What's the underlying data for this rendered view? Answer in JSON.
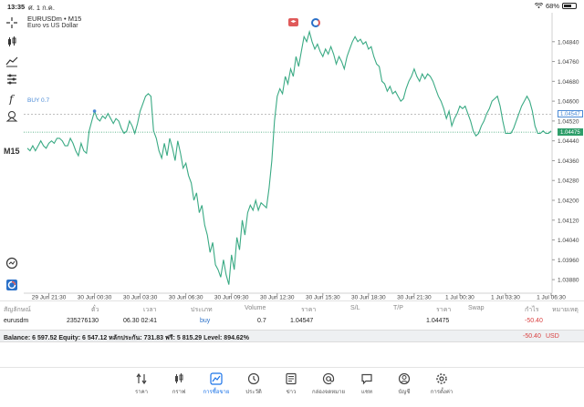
{
  "status_bar": {
    "time": "13:35",
    "date": "ศ. 1 ก.ค.",
    "battery": "68%",
    "battery_level": 0.68
  },
  "toolbar": {
    "timeframe": "M15"
  },
  "chart": {
    "symbol": "EURUSDm",
    "timeframe": "M15",
    "description": "Euro vs US Dollar",
    "buy_line_label": "BUY 0.7",
    "buy_price_tag": "1.04547",
    "current_price_tag": "1.04475",
    "colors": {
      "line": "#3aaa84",
      "buy": "#4a8ad6",
      "bid": "#2e9e6a"
    }
  },
  "chart_data": {
    "type": "line",
    "ylim": [
      1.0384,
      1.0492
    ],
    "y_ticks": [
      "1.04840",
      "1.04760",
      "1.04680",
      "1.04600",
      "1.04520",
      "1.04440",
      "1.04360",
      "1.04280",
      "1.04200",
      "1.04120",
      "1.04040",
      "1.03960",
      "1.03880"
    ],
    "y_tick_values": [
      1.0484,
      1.0476,
      1.0468,
      1.046,
      1.0452,
      1.0444,
      1.0436,
      1.0428,
      1.042,
      1.0412,
      1.0404,
      1.0396,
      1.0388
    ],
    "x_ticks": [
      "29 Jun 21:30",
      "30 Jun 00:30",
      "30 Jun 03:30",
      "30 Jun 06:30",
      "30 Jun 09:30",
      "30 Jun 12:30",
      "30 Jun 15:30",
      "30 Jun 18:30",
      "30 Jun 21:30",
      "1 Jul 00:30",
      "1 Jul 03:30",
      "1 Jul 06:30"
    ],
    "x_tick_index": [
      8,
      25,
      42,
      59,
      76,
      93,
      110,
      127,
      144,
      161,
      178,
      195
    ],
    "x_count": 196,
    "buy_price": 1.04547,
    "bid_price": 1.04475,
    "series": [
      {
        "values": [
          1.0441,
          1.044,
          1.0442,
          1.044,
          1.0442,
          1.0444,
          1.0442,
          1.0441,
          1.0443,
          1.0444,
          1.0443,
          1.0445,
          1.0445,
          1.0444,
          1.0442,
          1.0442,
          1.0445,
          1.0443,
          1.044,
          1.0438,
          1.0443,
          1.044,
          1.0439,
          1.0448,
          1.0452,
          1.0456,
          1.0453,
          1.0452,
          1.0454,
          1.0453,
          1.0455,
          1.0453,
          1.0451,
          1.0453,
          1.0452,
          1.0449,
          1.0447,
          1.0448,
          1.0452,
          1.045,
          1.0447,
          1.0451,
          1.0456,
          1.0459,
          1.0462,
          1.0463,
          1.0462,
          1.0448,
          1.0445,
          1.044,
          1.0437,
          1.0443,
          1.0438,
          1.0445,
          1.0441,
          1.0436,
          1.0444,
          1.0439,
          1.0433,
          1.0435,
          1.043,
          1.0427,
          1.042,
          1.0423,
          1.0415,
          1.0418,
          1.041,
          1.0406,
          1.0399,
          1.0403,
          1.0394,
          1.0392,
          1.0389,
          1.0396,
          1.039,
          1.0386,
          1.0398,
          1.0392,
          1.0405,
          1.04,
          1.0412,
          1.0406,
          1.0415,
          1.0418,
          1.0416,
          1.042,
          1.0416,
          1.0419,
          1.0418,
          1.0417,
          1.0425,
          1.0436,
          1.0452,
          1.0462,
          1.0465,
          1.0463,
          1.047,
          1.0467,
          1.0473,
          1.047,
          1.0478,
          1.0474,
          1.048,
          1.0486,
          1.0484,
          1.0488,
          1.0484,
          1.0481,
          1.0483,
          1.048,
          1.0478,
          1.0481,
          1.0479,
          1.0482,
          1.0479,
          1.0475,
          1.0478,
          1.0476,
          1.0473,
          1.0478,
          1.0481,
          1.0484,
          1.0486,
          1.0484,
          1.0485,
          1.0483,
          1.0484,
          1.0481,
          1.0482,
          1.0478,
          1.0475,
          1.0474,
          1.0468,
          1.0467,
          1.0464,
          1.0466,
          1.0463,
          1.0464,
          1.0462,
          1.046,
          1.0461,
          1.0465,
          1.0468,
          1.047,
          1.0473,
          1.047,
          1.0468,
          1.0471,
          1.0469,
          1.0471,
          1.047,
          1.0468,
          1.0465,
          1.0462,
          1.046,
          1.0457,
          1.0453,
          1.0456,
          1.045,
          1.0453,
          1.0455,
          1.0458,
          1.0457,
          1.0458,
          1.0455,
          1.0452,
          1.0448,
          1.0446,
          1.0447,
          1.045,
          1.0452,
          1.0455,
          1.0457,
          1.046,
          1.0461,
          1.0462,
          1.0458,
          1.0452,
          1.0447,
          1.0447,
          1.0447,
          1.0449,
          1.0452,
          1.0455,
          1.0458,
          1.046,
          1.0462,
          1.046,
          1.0456,
          1.045,
          1.0447,
          1.0447,
          1.0448,
          1.0447,
          1.0447,
          1.0448
        ]
      }
    ]
  },
  "positions": {
    "headers": {
      "symbol": "สัญลักษณ์",
      "ticket": "ตั๋ว",
      "time": "เวลา",
      "type": "ประเภท",
      "volume": "Volume",
      "price": "ราคา",
      "sl": "S/L",
      "tp": "T/P",
      "current": "ราคา",
      "swap": "Swap",
      "profit": "กำไร",
      "comment": "หมายเหตุ"
    },
    "rows": [
      {
        "symbol": "eurusdm",
        "ticket": "235276130",
        "time": "06.30 02:41",
        "type": "buy",
        "volume": "0.7",
        "price": "1.04547",
        "current": "1.04475",
        "profit": "-50.40"
      }
    ]
  },
  "balance": {
    "text": "Balance: 6 597.52 Equity: 6 547.12 หลักประกัน: 731.83 ฟรี: 5 815.29 Level: 894.62%",
    "profit": "-50.40",
    "currency": "USD"
  },
  "nav": {
    "items": [
      {
        "label": "ราคา",
        "icon": "arrows-updown-icon"
      },
      {
        "label": "กราฟ",
        "icon": "candles-icon"
      },
      {
        "label": "การซื้อขาย",
        "icon": "trade-chart-icon"
      },
      {
        "label": "ประวัติ",
        "icon": "history-icon"
      },
      {
        "label": "ข่าว",
        "icon": "news-icon"
      },
      {
        "label": "กล่องจดหมาย",
        "icon": "at-icon"
      },
      {
        "label": "แชท",
        "icon": "chat-icon"
      },
      {
        "label": "บัญชี",
        "icon": "account-icon"
      },
      {
        "label": "การตั้งค่า",
        "icon": "settings-icon"
      }
    ],
    "active_index": 2
  }
}
